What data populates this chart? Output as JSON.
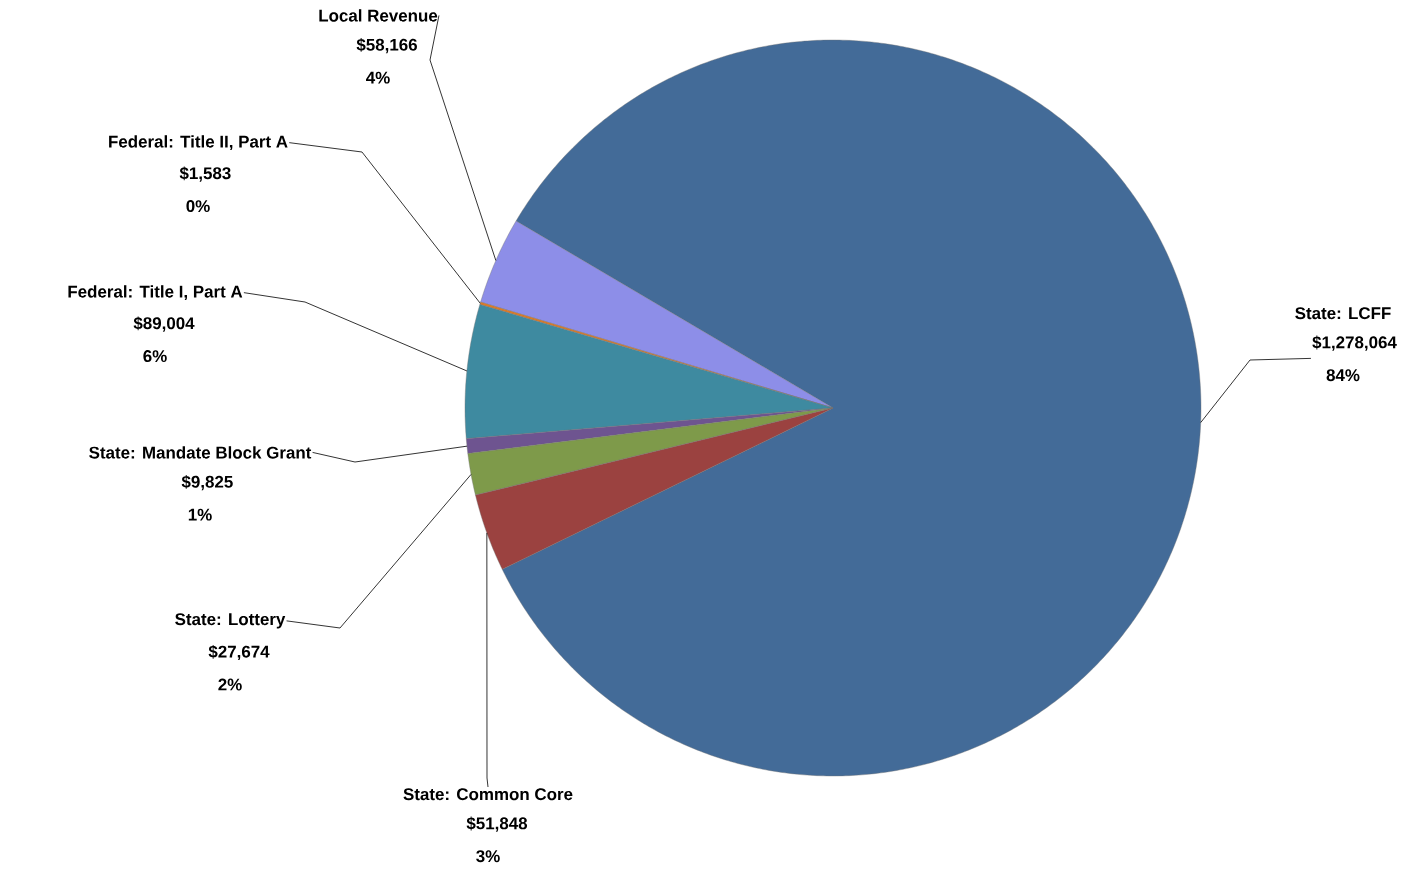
{
  "chart_data": {
    "type": "pie",
    "categories": [
      "State: LCFF",
      "Local Revenue",
      "Federal: Title II, Part A",
      "Federal: Title I, Part A",
      "State: Mandate Block Grant",
      "State: Lottery",
      "State: Common Core"
    ],
    "values": [
      1278064,
      58166,
      1583,
      89004,
      9825,
      27674,
      51848
    ],
    "colors": [
      "#436b98",
      "#8d8ee8",
      "#e07b25",
      "#3e8aa0",
      "#6e5490",
      "#7e9a4a",
      "#9b4240"
    ],
    "value_labels": [
      "$1,278,064 84%",
      "$58,166 4%",
      "$1,583 0%",
      "$89,004 6%",
      "$9,825 1%",
      "$27,674 2%",
      "$51,848 3%"
    ]
  }
}
